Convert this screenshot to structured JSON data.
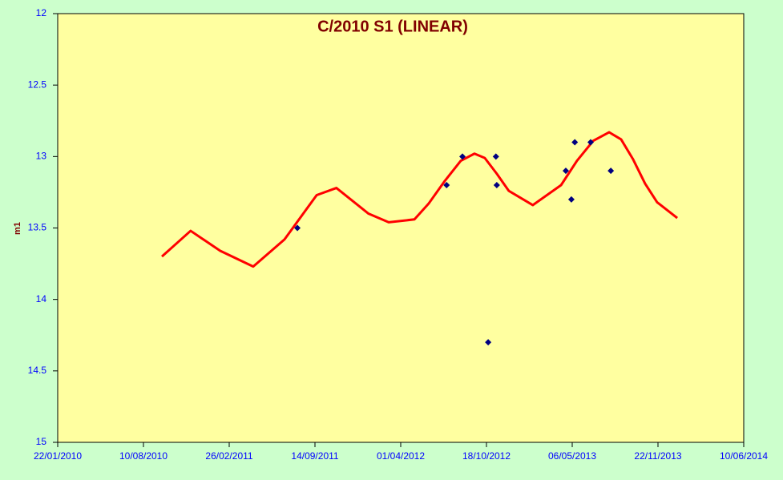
{
  "chart_data": {
    "type": "scatter",
    "title": "C/2010 S1 (LINEAR)",
    "ylabel": "m1",
    "xlim": [
      "22/01/2010",
      "10/06/2014"
    ],
    "xticks": [
      "22/01/2010",
      "10/08/2010",
      "26/02/2011",
      "14/09/2011",
      "01/04/2012",
      "18/10/2012",
      "06/05/2013",
      "22/11/2013",
      "10/06/2014"
    ],
    "ylim": [
      12,
      15
    ],
    "y_inverted": true,
    "yticks": [
      12,
      12.5,
      13,
      13.5,
      14,
      14.5,
      15
    ],
    "background": "#ccffcc",
    "plot_background": "#ffffa0",
    "series": [
      {
        "style": "markers",
        "color": "#000080",
        "x": [
          "04/08/2011",
          "17/07/2012",
          "23/08/2012",
          "22/10/2012",
          "09/11/2012",
          "11/11/2012",
          "21/04/2013",
          "04/05/2013",
          "12/05/2013",
          "18/06/2013",
          "04/08/2013"
        ],
        "values": [
          13.5,
          13.2,
          13.0,
          14.3,
          13.0,
          13.2,
          13.1,
          13.3,
          12.9,
          12.9,
          13.1
        ]
      },
      {
        "style": "line",
        "color": "#ff0000",
        "x": [
          "22/09/2010",
          "28/11/2010",
          "05/02/2011",
          "23/04/2011",
          "05/07/2011",
          "18/09/2011",
          "03/11/2011",
          "17/01/2012",
          "04/03/2012",
          "03/05/2012",
          "05/06/2012",
          "13/07/2012",
          "19/08/2012",
          "20/09/2012",
          "14/10/2012",
          "11/11/2012",
          "09/12/2012",
          "03/02/2013",
          "10/04/2013",
          "17/05/2013",
          "24/06/2013",
          "31/07/2013",
          "28/08/2013",
          "25/09/2013",
          "23/10/2013",
          "20/11/2013",
          "06/01/2014"
        ],
        "values": [
          13.7,
          13.52,
          13.66,
          13.77,
          13.58,
          13.27,
          13.22,
          13.4,
          13.46,
          13.44,
          13.33,
          13.17,
          13.03,
          12.98,
          13.01,
          13.12,
          13.24,
          13.34,
          13.2,
          13.03,
          12.89,
          12.83,
          12.88,
          13.02,
          13.19,
          13.32,
          13.43
        ]
      }
    ]
  }
}
